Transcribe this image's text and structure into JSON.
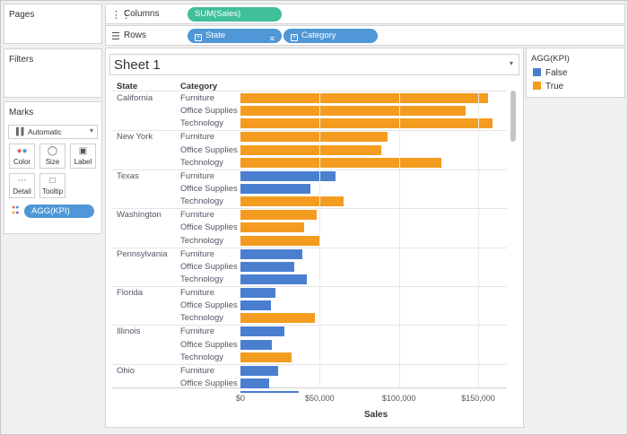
{
  "shelves": {
    "columns_label": "Columns",
    "rows_label": "Rows",
    "columns_pill": "SUM(Sales)",
    "rows_pills": [
      "State",
      "Category"
    ]
  },
  "panes": {
    "pages": "Pages",
    "filters": "Filters",
    "marks": "Marks",
    "mark_type": "Automatic",
    "mark_buttons": [
      "Color",
      "Size",
      "Label",
      "Detail",
      "Tooltip"
    ],
    "color_pill": "AGG(KPI)"
  },
  "sheet": {
    "title": "Sheet 1"
  },
  "legend": {
    "title": "AGG(KPI)",
    "items": [
      {
        "label": "False",
        "color": "#4a7fd0"
      },
      {
        "label": "True",
        "color": "#f39c1f"
      }
    ]
  },
  "chart_data": {
    "type": "bar",
    "orientation": "horizontal",
    "row_headers": [
      "State",
      "Category"
    ],
    "xlabel": "Sales",
    "xlim": [
      0,
      165000
    ],
    "x_ticks": [
      "$0",
      "$50,000",
      "$100,000",
      "$150,000"
    ],
    "color_by": "AGG(KPI)",
    "groups": [
      {
        "state": "California",
        "rows": [
          {
            "category": "Furniture",
            "value": 156000,
            "kpi": "True"
          },
          {
            "category": "Office Supplies",
            "value": 142000,
            "kpi": "True"
          },
          {
            "category": "Technology",
            "value": 159000,
            "kpi": "True"
          }
        ]
      },
      {
        "state": "New York",
        "rows": [
          {
            "category": "Furniture",
            "value": 93000,
            "kpi": "True"
          },
          {
            "category": "Office Supplies",
            "value": 89000,
            "kpi": "True"
          },
          {
            "category": "Technology",
            "value": 127000,
            "kpi": "True"
          }
        ]
      },
      {
        "state": "Texas",
        "rows": [
          {
            "category": "Furniture",
            "value": 60000,
            "kpi": "False"
          },
          {
            "category": "Office Supplies",
            "value": 44000,
            "kpi": "False"
          },
          {
            "category": "Technology",
            "value": 65000,
            "kpi": "True"
          }
        ]
      },
      {
        "state": "Washington",
        "rows": [
          {
            "category": "Furniture",
            "value": 48000,
            "kpi": "True"
          },
          {
            "category": "Office Supplies",
            "value": 40000,
            "kpi": "True"
          },
          {
            "category": "Technology",
            "value": 50000,
            "kpi": "True"
          }
        ]
      },
      {
        "state": "Pennsylvania",
        "rows": [
          {
            "category": "Furniture",
            "value": 39000,
            "kpi": "False"
          },
          {
            "category": "Office Supplies",
            "value": 34000,
            "kpi": "False"
          },
          {
            "category": "Technology",
            "value": 42000,
            "kpi": "False"
          }
        ]
      },
      {
        "state": "Florida",
        "rows": [
          {
            "category": "Furniture",
            "value": 22000,
            "kpi": "False"
          },
          {
            "category": "Office Supplies",
            "value": 19000,
            "kpi": "False"
          },
          {
            "category": "Technology",
            "value": 47000,
            "kpi": "True"
          }
        ]
      },
      {
        "state": "Illinois",
        "rows": [
          {
            "category": "Furniture",
            "value": 28000,
            "kpi": "False"
          },
          {
            "category": "Office Supplies",
            "value": 20000,
            "kpi": "False"
          },
          {
            "category": "Technology",
            "value": 32000,
            "kpi": "True"
          }
        ]
      },
      {
        "state": "Ohio",
        "rows": [
          {
            "category": "Furniture",
            "value": 24000,
            "kpi": "False"
          },
          {
            "category": "Office Supplies",
            "value": 18000,
            "kpi": "False"
          }
        ]
      }
    ]
  }
}
